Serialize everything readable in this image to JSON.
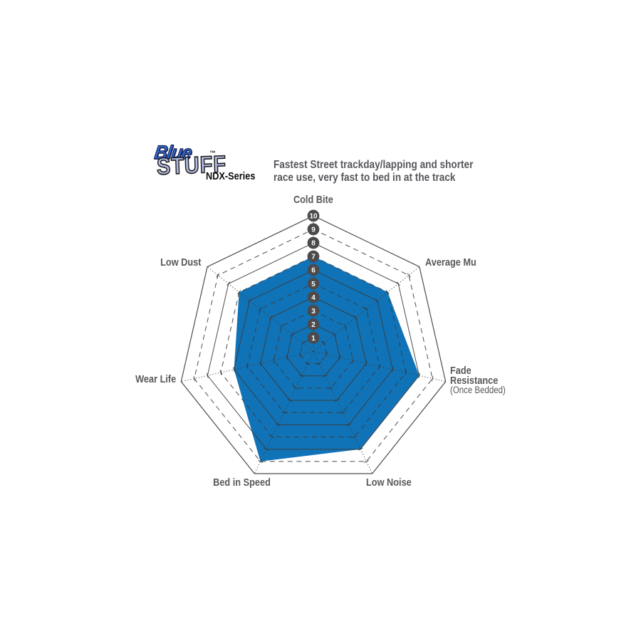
{
  "brand": {
    "logo_word1": "Blue",
    "logo_word2": "STUFF",
    "trademark": "™",
    "series_label": "NDX-Series",
    "logo_blue_color": "#2e6ac3",
    "logo_lilac_color": "#b3bbe4"
  },
  "header": {
    "description_line1": "Fastest Street trackday/lapping and shorter",
    "description_line2": "race use, very fast to bed in at the track"
  },
  "chart_data": {
    "type": "radar",
    "categories": [
      "Cold Bite",
      "Average Mu",
      "Fade Resistance (Once Bedded)",
      "Low Noise",
      "Bed in Speed",
      "Wear Life",
      "Low Dust"
    ],
    "values": [
      7,
      7,
      8,
      8,
      9,
      6,
      7
    ],
    "scale_min": 0,
    "scale_max": 10,
    "scale_ticks": [
      10,
      9,
      8,
      7,
      6,
      5,
      4,
      3,
      2,
      1
    ],
    "rings": 10,
    "grid": true,
    "legend": "none",
    "fill_color": "#1173b7",
    "grid_color": "#3a3a3a",
    "marker_fill": "#4b4b4d",
    "marker_text_color": "#ffffff",
    "label_color": "#58585a"
  },
  "axis_labels": {
    "cold_bite": "Cold Bite",
    "average_mu": "Average Mu",
    "fade_line1": "Fade",
    "fade_line2": "Resistance",
    "fade_line3": "(Once Bedded)",
    "low_noise": "Low Noise",
    "bed_in_speed": "Bed in Speed",
    "wear_life": "Wear Life",
    "low_dust": "Low Dust"
  }
}
